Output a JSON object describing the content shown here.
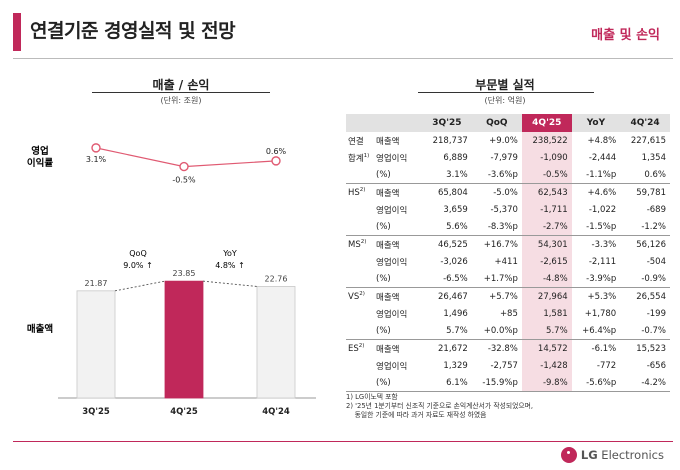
{
  "header": {
    "title": "연결기준 경영실적 및 전망",
    "section": "매출 및 손익"
  },
  "left_panel": {
    "title": "매출 / 손익",
    "unit": "(단위: 조원)",
    "op_margin_label_1": "영업",
    "op_margin_label_2": "이익률",
    "sales_label": "매출액",
    "qoq_label": "QoQ",
    "qoq_value": "9.0% ↑",
    "yoy_label": "YoY",
    "yoy_value": "4.8% ↑"
  },
  "chart_data": {
    "type": "bar",
    "categories": [
      "3Q'25",
      "4Q'25",
      "4Q'24"
    ],
    "series": [
      {
        "values": [
          21.87,
          23.85,
          22.76
        ]
      },
      {
        "values": [
          3.1,
          -0.5,
          0.6
        ]
      }
    ],
    "value_labels": [
      "21.87",
      "23.85",
      "22.76"
    ],
    "margin_labels": [
      "3.1%",
      "-0.5%",
      "0.6%"
    ],
    "highlight_category": "4Q'25",
    "colors": {
      "bar": "#f2f2f2",
      "bar_highlight": "#c0285a",
      "line": "#e05a72"
    }
  },
  "right_panel": {
    "title": "부문별 실적",
    "unit": "(단위: 억원)",
    "columns": [
      "3Q'25",
      "QoQ",
      "4Q'25",
      "YoY",
      "4Q'24"
    ],
    "groups": [
      {
        "seg": "연결",
        "seg2": "합계",
        "sup": "1)",
        "rows": [
          {
            "metric": "매출액",
            "values": [
              "218,737",
              "+9.0%",
              "238,522",
              "+4.8%",
              "227,615"
            ]
          },
          {
            "metric": "영업이익",
            "values": [
              "6,889",
              "-7,979",
              "-1,090",
              "-2,444",
              "1,354"
            ]
          },
          {
            "metric": "(%)",
            "values": [
              "3.1%",
              "-3.6%p",
              "-0.5%",
              "-1.1%p",
              "0.6%"
            ]
          }
        ]
      },
      {
        "seg": "HS",
        "sup": "2)",
        "rows": [
          {
            "metric": "매출액",
            "values": [
              "65,804",
              "-5.0%",
              "62,543",
              "+4.6%",
              "59,781"
            ]
          },
          {
            "metric": "영업이익",
            "values": [
              "3,659",
              "-5,370",
              "-1,711",
              "-1,022",
              "-689"
            ]
          },
          {
            "metric": "(%)",
            "values": [
              "5.6%",
              "-8.3%p",
              "-2.7%",
              "-1.5%p",
              "-1.2%"
            ]
          }
        ]
      },
      {
        "seg": "MS",
        "sup": "2)",
        "rows": [
          {
            "metric": "매출액",
            "values": [
              "46,525",
              "+16.7%",
              "54,301",
              "-3.3%",
              "56,126"
            ]
          },
          {
            "metric": "영업이익",
            "values": [
              "-3,026",
              "+411",
              "-2,615",
              "-2,111",
              "-504"
            ]
          },
          {
            "metric": "(%)",
            "values": [
              "-6.5%",
              "+1.7%p",
              "-4.8%",
              "-3.9%p",
              "-0.9%"
            ]
          }
        ]
      },
      {
        "seg": "VS",
        "sup": "2)",
        "rows": [
          {
            "metric": "매출액",
            "values": [
              "26,467",
              "+5.7%",
              "27,964",
              "+5.3%",
              "26,554"
            ]
          },
          {
            "metric": "영업이익",
            "values": [
              "1,496",
              "+85",
              "1,581",
              "+1,780",
              "-199"
            ]
          },
          {
            "metric": "(%)",
            "values": [
              "5.7%",
              "+0.0%p",
              "5.7%",
              "+6.4%p",
              "-0.7%"
            ]
          }
        ]
      },
      {
        "seg": "ES",
        "sup": "2)",
        "rows": [
          {
            "metric": "매출액",
            "values": [
              "21,672",
              "-32.8%",
              "14,572",
              "-6.1%",
              "15,523"
            ]
          },
          {
            "metric": "영업이익",
            "values": [
              "1,329",
              "-2,757",
              "-1,428",
              "-772",
              "-656"
            ]
          },
          {
            "metric": "(%)",
            "values": [
              "6.1%",
              "-15.9%p",
              "-9.8%",
              "-5.6%p",
              "-4.2%"
            ]
          }
        ]
      }
    ]
  },
  "notes": [
    "1) LG이노텍 포함",
    "2) '25년 1분기부터 신조직 기준으로 손익계산서가 작성되었으며,",
    "    동일한 기준에 따라 과거 자료도 재작성 하였음"
  ],
  "footer": {
    "logo_lg": "LG",
    "logo_rest": " Electronics",
    "logo_icon": "lg-logo-icon"
  }
}
